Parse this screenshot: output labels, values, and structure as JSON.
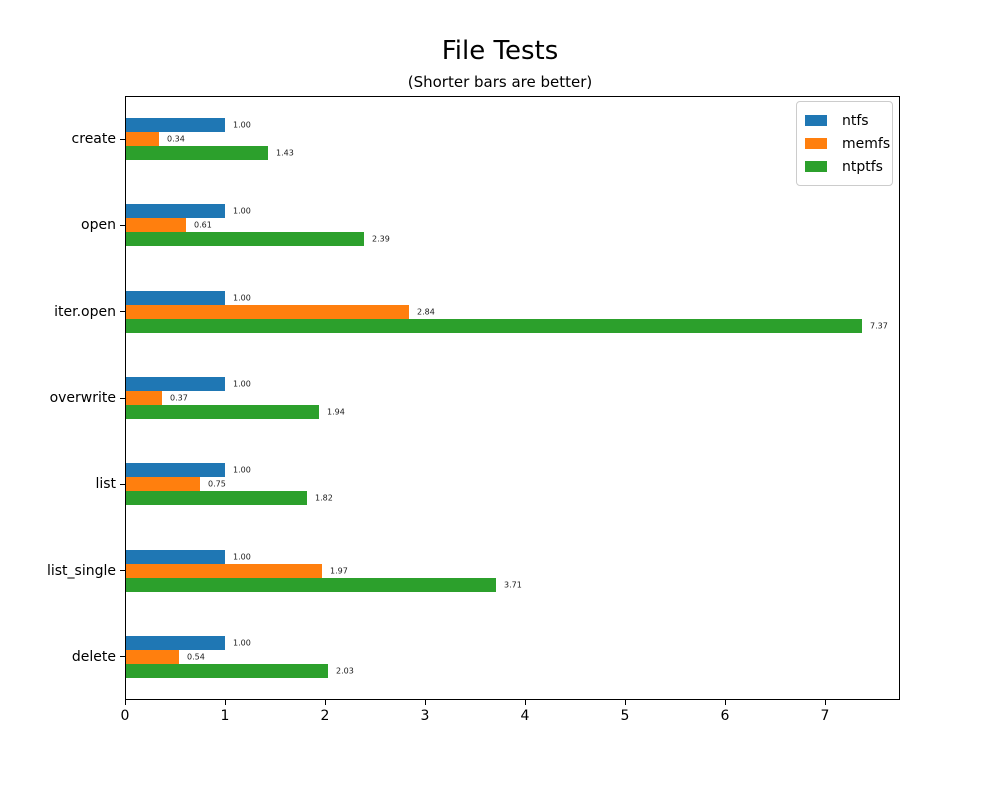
{
  "figure": {
    "title": "File Tests",
    "subtitle": "(Shorter bars are better)"
  },
  "chart_data": {
    "type": "bar",
    "orientation": "horizontal",
    "title": "File Tests",
    "subtitle": "(Shorter bars are better)",
    "xlabel": "",
    "ylabel": "",
    "categories": [
      "create",
      "open",
      "iter.open",
      "overwrite",
      "list",
      "list_single",
      "delete"
    ],
    "series": [
      {
        "name": "ntfs",
        "color": "#1f77b4",
        "values": [
          1.0,
          1.0,
          1.0,
          1.0,
          1.0,
          1.0,
          1.0
        ]
      },
      {
        "name": "memfs",
        "color": "#ff7f0e",
        "values": [
          0.34,
          0.61,
          2.84,
          0.37,
          0.75,
          1.97,
          0.54
        ]
      },
      {
        "name": "ntptfs",
        "color": "#2ca02c",
        "values": [
          1.43,
          2.39,
          7.37,
          1.94,
          1.82,
          3.71,
          2.03
        ]
      }
    ],
    "bar_labels_visible": true,
    "bar_label_decimals": 2,
    "xlim": [
      0,
      7.75
    ],
    "xticks": [
      0,
      1,
      2,
      3,
      4,
      5,
      6,
      7
    ],
    "grid": false,
    "legend_position": "upper right",
    "legend_entries": [
      "ntfs",
      "memfs",
      "ntptfs"
    ]
  },
  "colors": {
    "ntfs": "#1f77b4",
    "memfs": "#ff7f0e",
    "ntptfs": "#2ca02c",
    "axis": "#000000",
    "legend_border": "#cccccc",
    "background": "#ffffff"
  }
}
